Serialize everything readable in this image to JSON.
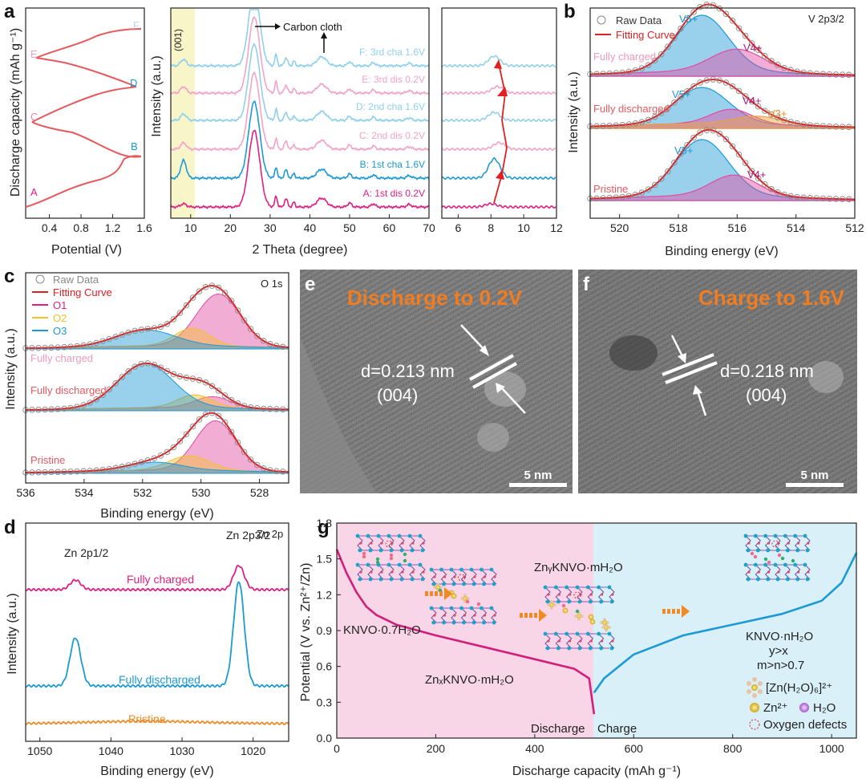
{
  "figure": {
    "panel_letters": [
      "a",
      "b",
      "c",
      "d",
      "e",
      "f",
      "g"
    ],
    "colors": {
      "red": "#e45a5f",
      "pink": "#e21f80",
      "blue": "#1c9ad6",
      "lightblue": "#8fd0ec",
      "lightpink": "#f4a3c6",
      "orange": "#f08a24",
      "yellow": "#f2c12e",
      "gray": "#888888"
    }
  },
  "chart_data": [
    {
      "id": "a1",
      "type": "line",
      "xlabel": "Potential (V)",
      "ylabel": "Discharge capacity (mAh g⁻¹)",
      "xticks": [
        "0.4",
        "0.8",
        "1.2",
        "1.6"
      ],
      "xlim": [
        0.1,
        1.6
      ],
      "points": [
        "A",
        "B",
        "C",
        "D",
        "E",
        "F"
      ]
    },
    {
      "id": "a2",
      "type": "line",
      "xlabel": "2 Theta (degree)",
      "ylabel": "Intensity (a.u.)",
      "xticks": [
        "10",
        "20",
        "30",
        "40",
        "50",
        "60",
        "70"
      ],
      "xlim": [
        5,
        70
      ],
      "highlight_label": "(001)",
      "annotation": "Carbon cloth",
      "series": [
        {
          "name": "A: 1st dis 0.2V"
        },
        {
          "name": "B: 1st cha 1.6V"
        },
        {
          "name": "C: 2nd dis 0.2V"
        },
        {
          "name": "D: 2nd cha 1.6V"
        },
        {
          "name": "E: 3rd dis 0.2V"
        },
        {
          "name": "F: 3rd cha 1.6V"
        }
      ]
    },
    {
      "id": "a3",
      "type": "line",
      "xticks": [
        "6",
        "8",
        "10",
        "12"
      ],
      "xlim": [
        5,
        12
      ]
    },
    {
      "id": "b",
      "type": "area",
      "title": "V 2p3/2",
      "xlabel": "Binding energy (eV)",
      "ylabel": "Intensity (a.u.)",
      "xticks": [
        "520",
        "518",
        "516",
        "514",
        "512"
      ],
      "xlim": [
        521,
        512
      ],
      "legend": [
        "Raw Data",
        "Fitting Curve"
      ],
      "stacks": [
        {
          "name": "Fully charged",
          "peaks": [
            "V5+",
            "V4+"
          ]
        },
        {
          "name": "Fully discharged",
          "peaks": [
            "V5+",
            "V4+",
            "V3+"
          ]
        },
        {
          "name": "Pristine",
          "peaks": [
            "V5+",
            "V4+"
          ]
        }
      ]
    },
    {
      "id": "c",
      "type": "area",
      "title": "O 1s",
      "xlabel": "Binding energy (eV)",
      "ylabel": "Intensity (a.u.)",
      "xticks": [
        "536",
        "534",
        "532",
        "530",
        "528"
      ],
      "xlim": [
        536,
        527
      ],
      "legend": [
        "Raw Data",
        "Fitting Curve",
        "O1",
        "O2",
        "O3"
      ],
      "stacks": [
        "Fully charged",
        "Fully discharged",
        "Pristine"
      ]
    },
    {
      "id": "d",
      "type": "line",
      "title": "Zn 2p",
      "xlabel": "Binding energy (eV)",
      "ylabel": "Intensity (a.u.)",
      "xticks": [
        "1050",
        "1040",
        "1030",
        "1020"
      ],
      "xlim": [
        1052,
        1015
      ],
      "peak_labels": [
        "Zn 2p1/2",
        "Zn 2p3/2"
      ],
      "series": [
        "Fully charged",
        "Fully discharged",
        "Pristine"
      ]
    },
    {
      "id": "g",
      "type": "line",
      "xlabel": "Discharge capacity (mAh g⁻¹)",
      "ylabel": "Potential (V vs. Zn²⁺/Zn)",
      "xticks": [
        "0",
        "200",
        "400",
        "600",
        "800",
        "1000"
      ],
      "xlim": [
        0,
        1050
      ],
      "yticks": [
        "0.0",
        "0.3",
        "0.6",
        "0.9",
        "1.2",
        "1.5",
        "1.8"
      ],
      "ylim": [
        0,
        1.8
      ],
      "phase_labels": [
        "KNVO·0.7H₂O",
        "ZnₓKNVO·mH₂O",
        "ZnᵧKNVO·mH₂O",
        "KNVO·nH₂O",
        "y>x",
        "m>n>0.7"
      ],
      "region_labels": [
        "Discharge",
        "Charge"
      ],
      "legend": [
        "[Zn(H₂O)₆]²⁺",
        "Zn²⁺",
        "H₂O",
        "Oxygen defects"
      ],
      "discharge_curve": [
        [
          0,
          1.58
        ],
        [
          20,
          1.38
        ],
        [
          40,
          1.22
        ],
        [
          60,
          1.1
        ],
        [
          80,
          1.03
        ],
        [
          120,
          0.95
        ],
        [
          200,
          0.86
        ],
        [
          300,
          0.76
        ],
        [
          400,
          0.66
        ],
        [
          480,
          0.58
        ],
        [
          510,
          0.5
        ],
        [
          520,
          0.2
        ]
      ],
      "charge_curve": [
        [
          520,
          0.38
        ],
        [
          540,
          0.5
        ],
        [
          600,
          0.7
        ],
        [
          700,
          0.86
        ],
        [
          800,
          0.95
        ],
        [
          900,
          1.04
        ],
        [
          980,
          1.15
        ],
        [
          1020,
          1.3
        ],
        [
          1050,
          1.55
        ]
      ]
    }
  ],
  "tem": {
    "e": {
      "title": "Discharge to 0.2V",
      "d_spacing": "d=0.213 nm",
      "plane": "(004)",
      "scale": "5 nm"
    },
    "f": {
      "title": "Charge to 1.6V",
      "d_spacing": "d=0.218 nm",
      "plane": "(004)",
      "scale": "5 nm"
    }
  }
}
